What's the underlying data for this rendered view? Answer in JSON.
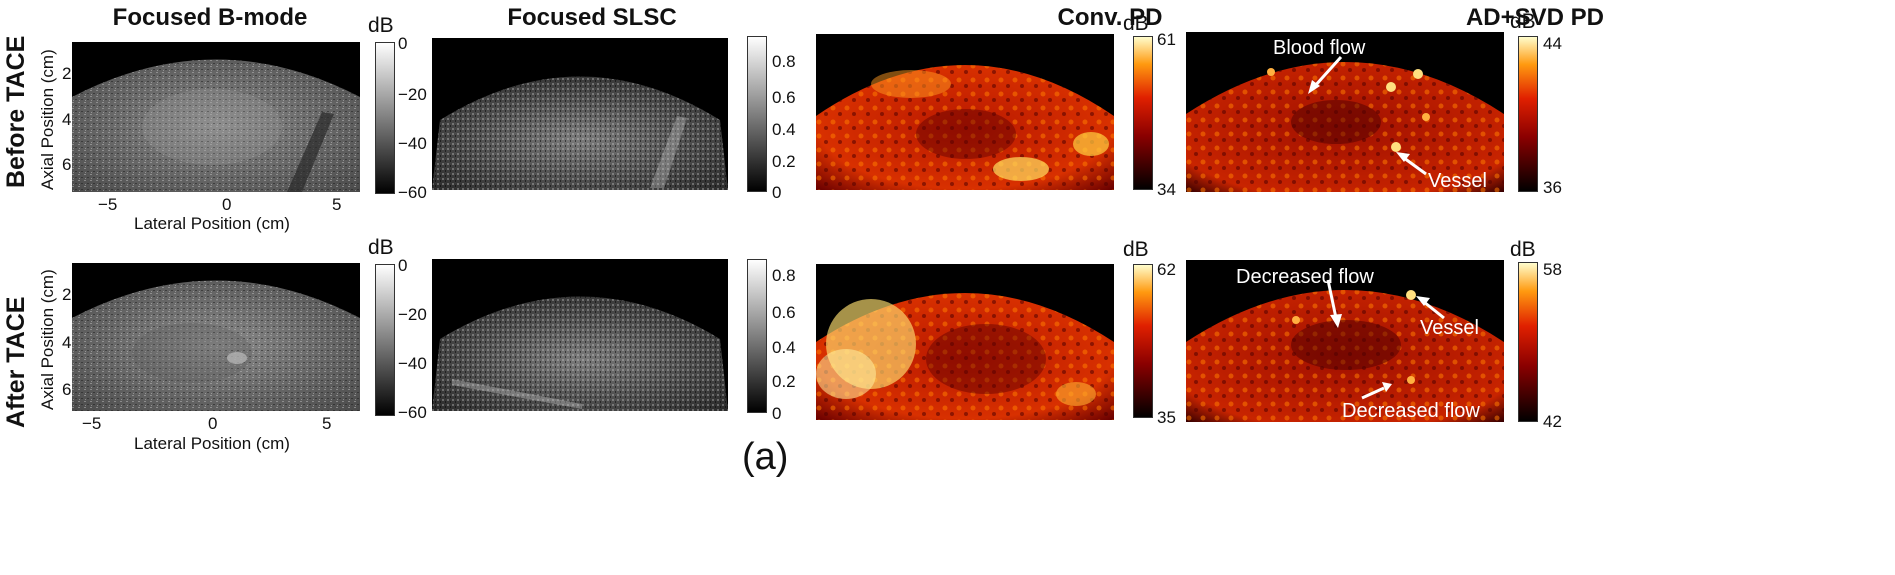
{
  "columns": [
    "Focused B-mode",
    "Focused SLSC",
    "Conv. PD",
    "AD+SVD PD"
  ],
  "rows": [
    "Before TACE",
    "After TACE"
  ],
  "axes": {
    "xlabel": "Lateral Position (cm)",
    "ylabel": "Axial Position (cm)",
    "xticks": [
      "−5",
      "0",
      "5"
    ],
    "yticks": [
      "2",
      "4",
      "6"
    ]
  },
  "colorbars": {
    "unit": "dB",
    "bmode_ticks": [
      "0",
      "−20",
      "−40",
      "−60"
    ],
    "slsc_ticks": [
      "0.8",
      "0.6",
      "0.4",
      "0.2",
      "0"
    ],
    "pd_before": {
      "max": "61",
      "min": "34"
    },
    "pd_after": {
      "max": "62",
      "min": "35"
    },
    "svd_before": {
      "max": "44",
      "min": "36"
    },
    "svd_after": {
      "max": "58",
      "min": "42"
    }
  },
  "annotations": {
    "before": [
      "Blood flow",
      "Vessel"
    ],
    "after": [
      "Decreased flow",
      "Vessel",
      "Decreased flow"
    ]
  },
  "caption": "(a)",
  "colors": {
    "hot_low": "#000000",
    "hot_mid": "#cc2200",
    "hot_high": "#ffff66",
    "gray_low": "#000000",
    "gray_high": "#ffffff"
  }
}
